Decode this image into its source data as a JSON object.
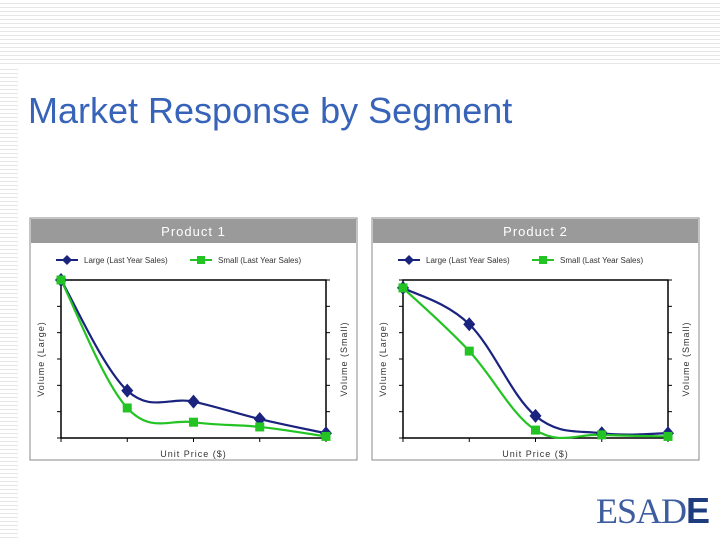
{
  "slide": {
    "title": "Market Response by Segment",
    "logo_text": "ESAD",
    "logo_accent": "E"
  },
  "colors": {
    "large_series": "#1a237e",
    "small_series": "#22c322",
    "header_bg": "#9a9a9a",
    "title_blue": "#3763b8"
  },
  "chart_data": [
    {
      "type": "line",
      "title": "Product 1",
      "xlabel": "Unit Price ($)",
      "ylabel": "Volume (Large)",
      "y2label": "Volume (Small)",
      "legend_placement": "top",
      "grid": false,
      "xlim": [
        0,
        4
      ],
      "ylim": [
        0,
        1
      ],
      "series": [
        {
          "name": "Large (Last Year Sales)",
          "marker": "diamond",
          "x": [
            0,
            1,
            2,
            3,
            4
          ],
          "y": [
            1.0,
            0.3,
            0.23,
            0.12,
            0.03
          ]
        },
        {
          "name": "Small (Last Year Sales)",
          "marker": "square",
          "x": [
            0,
            1,
            2,
            3,
            4
          ],
          "y": [
            1.0,
            0.19,
            0.1,
            0.07,
            0.01
          ]
        }
      ]
    },
    {
      "type": "line",
      "title": "Product 2",
      "xlabel": "Unit Price ($)",
      "ylabel": "Volume (Large)",
      "y2label": "Volume (Small)",
      "legend_placement": "top",
      "grid": false,
      "xlim": [
        0,
        4
      ],
      "ylim": [
        0,
        1
      ],
      "series": [
        {
          "name": "Large (Last Year Sales)",
          "marker": "diamond",
          "x": [
            0,
            1,
            2,
            3,
            4
          ],
          "y": [
            0.95,
            0.72,
            0.14,
            0.03,
            0.03
          ]
        },
        {
          "name": "Small (Last Year Sales)",
          "marker": "square",
          "x": [
            0,
            1,
            2,
            3,
            4
          ],
          "y": [
            0.95,
            0.55,
            0.05,
            0.02,
            0.01
          ]
        }
      ]
    }
  ]
}
